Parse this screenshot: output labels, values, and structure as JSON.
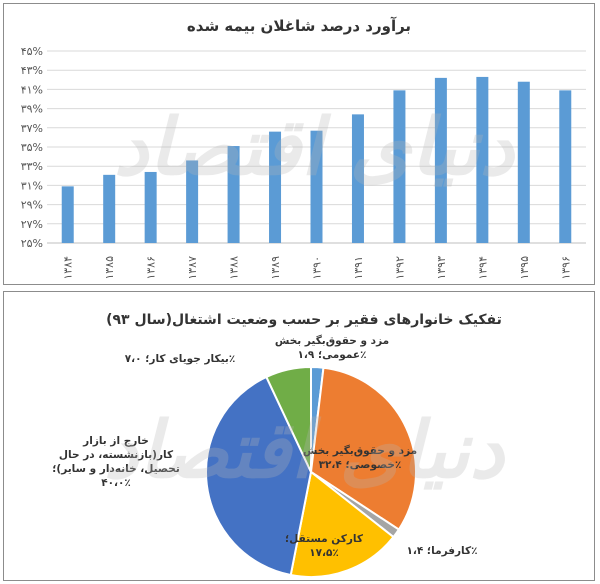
{
  "chart_data": [
    {
      "type": "bar",
      "title": "برآورد درصد شاغلان بیمه شده",
      "categories": [
        "۱۳۸۴",
        "۱۳۸۵",
        "۱۳۸۶",
        "۱۳۸۷",
        "۱۳۸۸",
        "۱۳۸۹",
        "۱۳۹۰",
        "۱۳۹۱",
        "۱۳۹۲",
        "۱۳۹۳",
        "۱۳۹۴",
        "۱۳۹۵",
        "۱۳۹۶"
      ],
      "values": [
        30.9,
        32.1,
        32.4,
        33.6,
        35.1,
        36.6,
        36.7,
        38.4,
        40.9,
        42.2,
        42.3,
        41.8,
        40.9
      ],
      "ylim": [
        25,
        45
      ],
      "yticks": [
        25,
        27,
        29,
        31,
        33,
        35,
        37,
        39,
        41,
        43,
        45
      ],
      "ytick_labels": [
        "۲۵%",
        "۲۷%",
        "۲۹%",
        "۳۱%",
        "۳۳%",
        "۳۵%",
        "۳۷%",
        "۳۹%",
        "۴۱%",
        "۴۳%",
        "۴۵%"
      ],
      "grid": true,
      "color": "#5b9bd5"
    },
    {
      "type": "pie",
      "title": "تفکیک خانوارهای فقیر بر حسب وضعیت اشتغال(سال ۹۳)",
      "slices": [
        {
          "label_lines": [
            "مزد و حقوق‌بگیر بخش",
            "عمومی؛ ۱،۹٪"
          ],
          "value": 1.9,
          "color": "#5b9bd5"
        },
        {
          "label_lines": [
            "مزد و حقوق‌بگیر بخش",
            "خصوصی؛ ۳۲،۴٪"
          ],
          "value": 32.4,
          "color": "#ed7d31"
        },
        {
          "label_lines": [
            "کارفرما؛ ۱،۴٪"
          ],
          "value": 1.4,
          "color": "#a5a5a5"
        },
        {
          "label_lines": [
            "کارکن مستقل؛",
            "۱۷،۵٪"
          ],
          "value": 17.5,
          "color": "#ffc000"
        },
        {
          "label_lines": [
            "خارج از بازار",
            "کار(بازنشسته، در حال",
            "تحصیل، خانه‌دار و سایر)؛",
            "۴۰،۰٪"
          ],
          "value": 40.0,
          "color": "#4472c4"
        },
        {
          "label_lines": [
            "بیکار جویای کار؛ ۷،۰٪"
          ],
          "value": 7.0,
          "color": "#70ad47"
        }
      ],
      "start_angle_deg": 0,
      "direction": "clockwise"
    }
  ],
  "watermark": "دنیای اقتصاد"
}
